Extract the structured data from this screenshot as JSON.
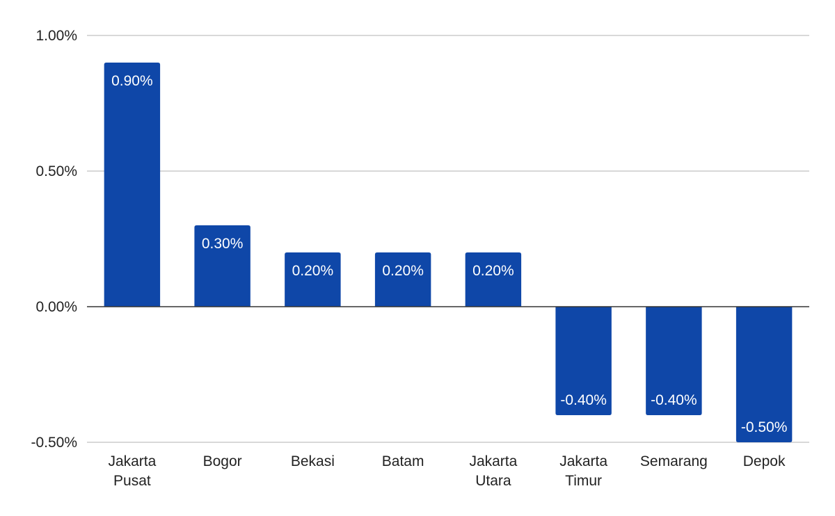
{
  "chart_data": {
    "type": "bar",
    "title": "",
    "xlabel": "",
    "ylabel": "",
    "categories": [
      "Jakarta Pusat",
      "Bogor",
      "Bekasi",
      "Batam",
      "Jakarta Utara",
      "Jakarta Timur",
      "Semarang",
      "Depok"
    ],
    "values": [
      0.9,
      0.3,
      0.2,
      0.2,
      0.2,
      -0.4,
      -0.4,
      -0.5
    ],
    "data_labels": [
      "0.90%",
      "0.30%",
      "0.20%",
      "0.20%",
      "0.20%",
      "-0.40%",
      "-0.40%",
      "-0.50%"
    ],
    "ylim": [
      -0.5,
      1.0
    ],
    "y_ticks": [
      -0.5,
      0,
      0.5,
      1.0
    ],
    "y_tick_labels": [
      "-0.50%",
      "0.00%",
      "0.50%",
      "1.00%"
    ],
    "grid": true,
    "legend": "none",
    "bar_color": "#0f47a8"
  }
}
